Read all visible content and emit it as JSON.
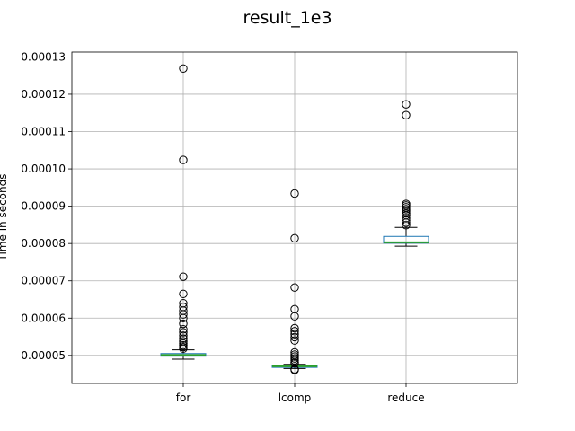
{
  "chart_data": {
    "type": "box",
    "title": "result_1e3",
    "xlabel": "",
    "ylabel": "Time in seconds",
    "categories": [
      "for",
      "lcomp",
      "reduce"
    ],
    "ylim": [
      4.25e-05,
      0.0001313
    ],
    "yticks": [
      5e-05,
      6e-05,
      7e-05,
      8e-05,
      9e-05,
      0.0001,
      0.00011,
      0.00012,
      0.00013
    ],
    "ytick_labels": [
      "0.00005",
      "0.00006",
      "0.00007",
      "0.00008",
      "0.00009",
      "0.00010",
      "0.00011",
      "0.00012",
      "0.00013"
    ],
    "grid": true,
    "colors": {
      "box": "#1f77b4",
      "median": "#2ca02c",
      "whisker": "#000000",
      "flier": "#000000",
      "grid": "#b0b0b0"
    },
    "boxes": [
      {
        "name": "for",
        "whislo": 4.9e-05,
        "q1": 4.98e-05,
        "med": 5.01e-05,
        "q3": 5.05e-05,
        "whishi": 5.15e-05,
        "fliers": [
          0.0001269,
          0.0001024,
          7.11e-05,
          6.65e-05,
          6.4e-05,
          6.3e-05,
          6.2e-05,
          6.1e-05,
          6e-05,
          5.85e-05,
          5.7e-05,
          5.62e-05,
          5.53e-05,
          5.45e-05,
          5.38e-05,
          5.32e-05,
          5.27e-05,
          5.22e-05,
          5.18e-05
        ]
      },
      {
        "name": "lcomp",
        "whislo": 4.65e-05,
        "q1": 4.68e-05,
        "med": 4.71e-05,
        "q3": 4.73e-05,
        "whishi": 4.76e-05,
        "fliers": [
          9.34e-05,
          8.14e-05,
          6.82e-05,
          6.24e-05,
          6.05e-05,
          5.73e-05,
          5.65e-05,
          5.57e-05,
          5.49e-05,
          5.4e-05,
          5.08e-05,
          5.02e-05,
          4.97e-05,
          4.92e-05,
          4.87e-05,
          4.82e-05,
          4.79e-05,
          4.63e-05,
          4.61e-05
        ]
      },
      {
        "name": "reduce",
        "whislo": 7.93e-05,
        "q1": 8.01e-05,
        "med": 8.03e-05,
        "q3": 8.19e-05,
        "whishi": 8.43e-05,
        "fliers": [
          0.0001173,
          0.0001144,
          9.06e-05,
          9.02e-05,
          8.97e-05,
          8.92e-05,
          8.87e-05,
          8.81e-05,
          8.76e-05,
          8.68e-05,
          8.62e-05,
          8.56e-05,
          8.49e-05
        ]
      }
    ]
  }
}
